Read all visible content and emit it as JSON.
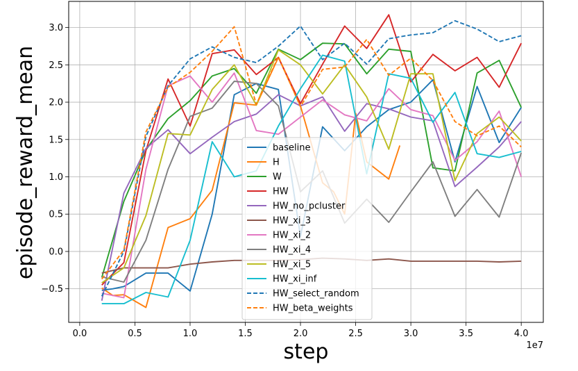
{
  "chart_data": {
    "type": "line",
    "xlabel": "step",
    "ylabel": "episode_reward_mean",
    "x_offset_text": "1e7",
    "xlim": [
      -0.1,
      4.2
    ],
    "ylim": [
      -0.95,
      3.35
    ],
    "x_ticks": [
      "0.0",
      "0.5",
      "1.0",
      "1.5",
      "2.0",
      "2.5",
      "3.0",
      "3.5",
      "4.0"
    ],
    "y_ticks": [
      "−0.5",
      "0.0",
      "0.5",
      "1.0",
      "1.5",
      "2.0",
      "2.5",
      "3.0"
    ],
    "grid": true,
    "legend_position": "center",
    "series": [
      {
        "name": "baseline",
        "color": "#1f77b4",
        "dashed": false,
        "x": [
          0.2,
          0.3,
          0.4,
          0.6,
          0.8,
          1.0,
          1.2,
          1.4,
          1.6,
          1.8,
          2.0,
          2.2,
          2.4,
          2.6,
          2.8,
          3.0,
          3.2,
          3.4,
          3.6,
          3.8,
          4.0
        ],
        "y": [
          -0.52,
          -0.5,
          -0.47,
          -0.29,
          -0.29,
          -0.53,
          0.5,
          2.1,
          2.25,
          2.17,
          0.2,
          1.67,
          1.35,
          1.67,
          1.9,
          2.0,
          2.3,
          1.2,
          2.21,
          1.46,
          1.93
        ]
      },
      {
        "name": "H",
        "color": "#ff7f0e",
        "dashed": false,
        "x": [
          0.2,
          0.3,
          0.4,
          0.6,
          0.8,
          1.0,
          1.2,
          1.4,
          1.6,
          1.8,
          2.0,
          2.2,
          2.3,
          2.4,
          2.5,
          2.6,
          2.8,
          2.9
        ],
        "y": [
          -0.49,
          -0.59,
          -0.58,
          -0.75,
          0.32,
          0.44,
          0.82,
          1.99,
          1.96,
          2.6,
          1.95,
          0.92,
          0.8,
          0.5,
          1.85,
          1.2,
          0.97,
          1.42
        ]
      },
      {
        "name": "W",
        "color": "#2ca02c",
        "dashed": false,
        "x": [
          0.2,
          0.4,
          0.6,
          0.8,
          1.0,
          1.2,
          1.4,
          1.6,
          1.8,
          2.0,
          2.2,
          2.4,
          2.6,
          2.8,
          3.0,
          3.2,
          3.4,
          3.6,
          3.8,
          4.0
        ],
        "y": [
          -0.35,
          0.67,
          1.36,
          1.78,
          2.02,
          2.35,
          2.45,
          2.12,
          2.71,
          2.57,
          2.79,
          2.78,
          2.38,
          2.71,
          2.68,
          1.12,
          1.08,
          2.39,
          2.56,
          1.93
        ]
      },
      {
        "name": "HW",
        "color": "#d62728",
        "dashed": false,
        "x": [
          0.2,
          0.4,
          0.6,
          0.8,
          1.0,
          1.2,
          1.4,
          1.6,
          1.8,
          2.0,
          2.2,
          2.4,
          2.6,
          2.8,
          3.0,
          3.2,
          3.4,
          3.6,
          3.8,
          4.0
        ],
        "y": [
          -0.45,
          -0.15,
          1.35,
          2.31,
          1.68,
          2.65,
          2.7,
          2.37,
          2.6,
          1.98,
          2.51,
          3.02,
          2.72,
          3.17,
          2.27,
          2.64,
          2.42,
          2.6,
          2.2,
          2.79
        ]
      },
      {
        "name": "HW_no_pcluster",
        "color": "#9467bd",
        "dashed": false,
        "x": [
          0.2,
          0.4,
          0.6,
          0.8,
          1.0,
          1.2,
          1.4,
          1.6,
          1.8,
          2.0,
          2.2,
          2.4,
          2.6,
          2.8,
          3.0,
          3.2,
          3.4,
          3.6,
          3.8,
          4.0
        ],
        "y": [
          -0.66,
          0.78,
          1.38,
          1.63,
          1.31,
          1.53,
          1.74,
          1.84,
          2.1,
          1.95,
          2.07,
          1.61,
          1.98,
          1.91,
          1.8,
          1.75,
          0.87,
          1.13,
          1.4,
          1.74
        ]
      },
      {
        "name": "HW_xi_3",
        "color": "#8c564b",
        "dashed": false,
        "x": [
          0.2,
          0.4,
          0.6,
          0.8,
          1.0,
          1.2,
          1.4,
          1.6,
          1.8,
          2.0,
          2.2,
          2.4,
          2.6,
          2.8,
          3.0,
          3.2,
          3.4,
          3.6,
          3.8,
          4.0
        ],
        "y": [
          -0.29,
          -0.22,
          -0.22,
          -0.22,
          -0.17,
          -0.14,
          -0.12,
          -0.12,
          -0.12,
          -0.11,
          -0.09,
          -0.1,
          -0.12,
          -0.1,
          -0.13,
          -0.13,
          -0.13,
          -0.13,
          -0.14,
          -0.13
        ]
      },
      {
        "name": "HW_xi_2",
        "color": "#e377c2",
        "dashed": false,
        "x": [
          0.2,
          0.4,
          0.6,
          0.8,
          1.0,
          1.2,
          1.4,
          1.6,
          1.8,
          2.0,
          2.2,
          2.4,
          2.6,
          2.8,
          3.0,
          3.2,
          3.4,
          3.6,
          3.8,
          4.0
        ],
        "y": [
          -0.56,
          -0.62,
          1.1,
          2.22,
          2.35,
          2.0,
          2.39,
          1.62,
          1.57,
          1.8,
          2.03,
          1.83,
          1.75,
          2.18,
          1.9,
          1.82,
          1.22,
          1.47,
          1.88,
          1.0
        ]
      },
      {
        "name": "HW_xi_4",
        "color": "#7f7f7f",
        "dashed": false,
        "x": [
          0.2,
          0.4,
          0.6,
          0.8,
          1.0,
          1.2,
          1.4,
          1.6,
          1.8,
          2.0,
          2.2,
          2.4,
          2.6,
          2.8,
          3.0,
          3.2,
          3.4,
          3.6,
          3.8,
          4.0
        ],
        "y": [
          -0.34,
          -0.41,
          0.15,
          1.1,
          1.81,
          1.92,
          2.28,
          2.25,
          1.95,
          0.8,
          1.08,
          0.38,
          0.7,
          0.39,
          0.8,
          1.2,
          0.47,
          0.83,
          0.46,
          1.32
        ]
      },
      {
        "name": "HW_xi_5",
        "color": "#bcbd22",
        "dashed": false,
        "x": [
          0.2,
          0.4,
          0.6,
          0.8,
          1.0,
          1.2,
          1.4,
          1.6,
          1.8,
          2.0,
          2.2,
          2.4,
          2.6,
          2.8,
          3.0,
          3.2,
          3.4,
          3.6,
          3.8,
          4.0
        ],
        "y": [
          -0.42,
          -0.22,
          0.48,
          1.58,
          1.56,
          2.17,
          2.5,
          1.96,
          2.7,
          2.5,
          2.11,
          2.5,
          2.07,
          1.37,
          2.38,
          2.38,
          0.95,
          1.58,
          1.8,
          1.48
        ]
      },
      {
        "name": "HW_xi_inf",
        "color": "#17becf",
        "dashed": false,
        "x": [
          0.2,
          0.4,
          0.6,
          0.8,
          1.0,
          1.2,
          1.4,
          1.6,
          1.8,
          2.0,
          2.2,
          2.4,
          2.6,
          2.8,
          3.0,
          3.2,
          3.4,
          3.6,
          3.8,
          4.0
        ],
        "y": [
          -0.7,
          -0.7,
          -0.55,
          -0.61,
          0.15,
          1.47,
          1.0,
          1.08,
          1.68,
          2.18,
          2.63,
          2.55,
          1.04,
          2.38,
          2.32,
          1.73,
          2.13,
          1.31,
          1.26,
          1.34
        ]
      },
      {
        "name": "HW_select_random",
        "color": "#1f77b4",
        "dashed": true,
        "x": [
          0.2,
          0.4,
          0.6,
          0.8,
          1.0,
          1.2,
          1.4,
          1.6,
          1.8,
          2.0,
          2.2,
          2.4,
          2.6,
          2.8,
          3.0,
          3.2,
          3.4,
          3.6,
          3.8,
          4.0
        ],
        "y": [
          -0.6,
          0.0,
          1.54,
          2.22,
          2.58,
          2.74,
          2.6,
          2.53,
          2.75,
          3.02,
          2.57,
          2.79,
          2.51,
          2.85,
          2.9,
          2.93,
          3.09,
          2.98,
          2.81,
          2.89
        ]
      },
      {
        "name": "HW_beta_weights",
        "color": "#ff7f0e",
        "dashed": true,
        "x": [
          0.2,
          0.4,
          0.6,
          0.8,
          1.0,
          1.2,
          1.4,
          1.6,
          1.8,
          2.0,
          2.2,
          2.4,
          2.6,
          2.8,
          3.0,
          3.2,
          3.4,
          3.6,
          3.8,
          4.0
        ],
        "y": [
          -0.37,
          0.02,
          1.6,
          2.2,
          2.4,
          2.68,
          3.01,
          1.97,
          2.61,
          1.94,
          2.44,
          2.47,
          2.84,
          2.36,
          2.59,
          2.29,
          1.74,
          1.55,
          1.68,
          1.4
        ]
      }
    ]
  }
}
